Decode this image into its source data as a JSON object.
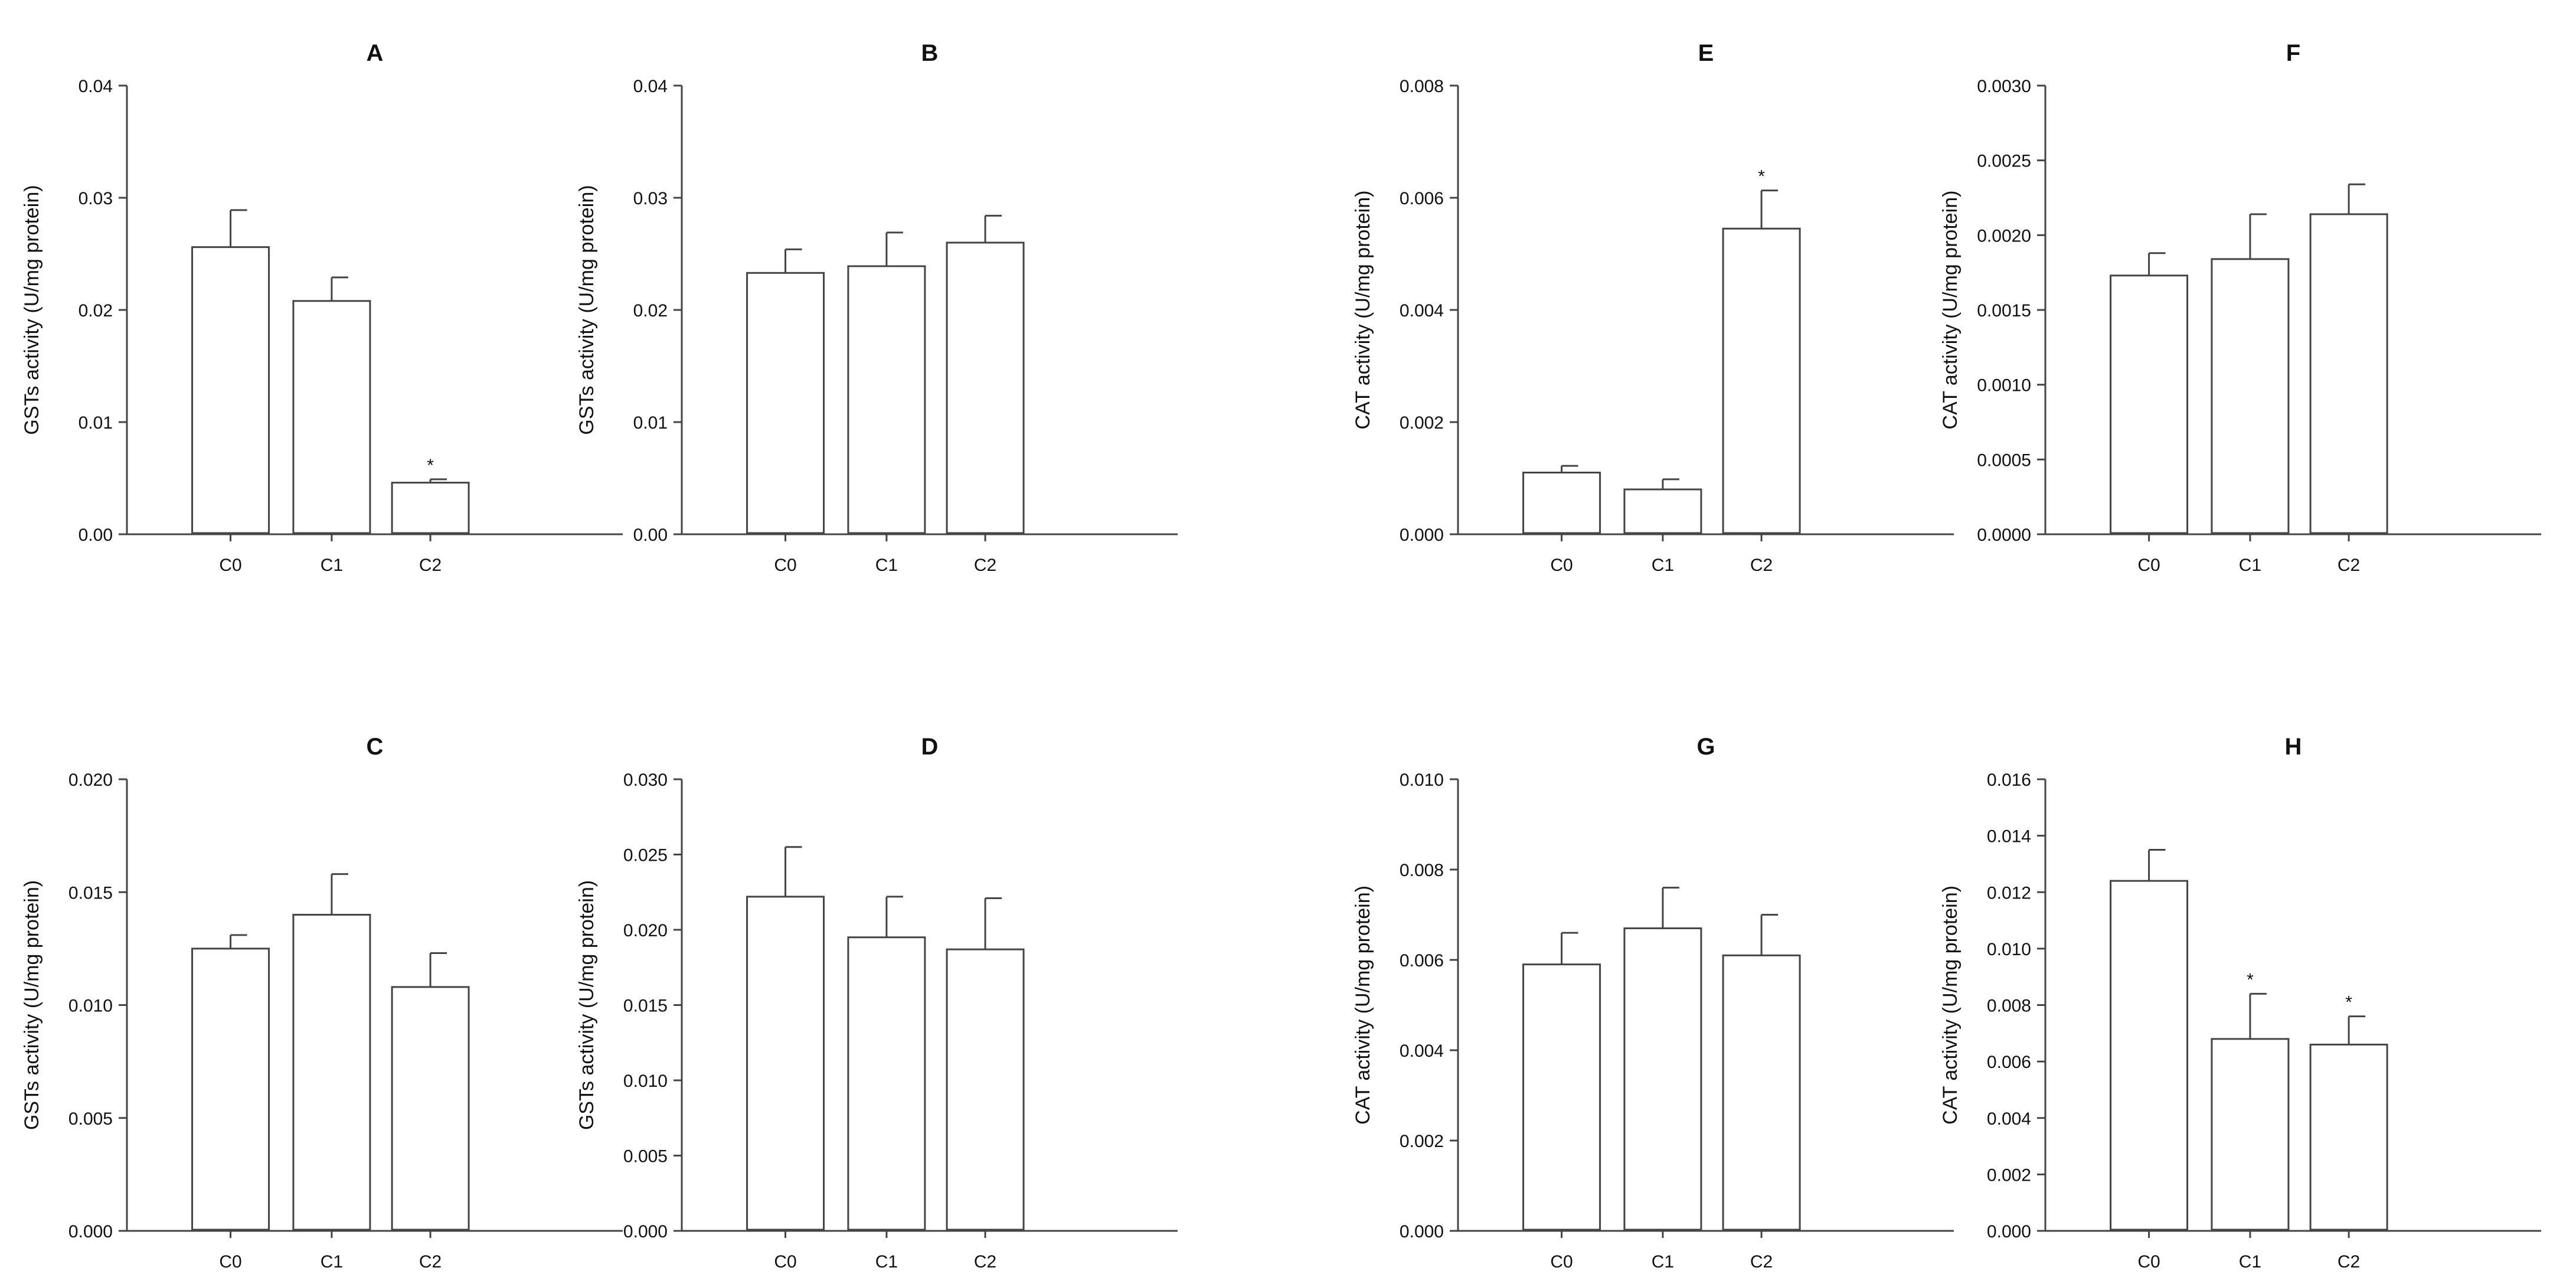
{
  "chart_data": [
    {
      "id": "A",
      "type": "bar",
      "title": "A",
      "ylabel": "GSTs activity (U/mg protein)",
      "categories": [
        "C0",
        "C1",
        "C2"
      ],
      "values": [
        0.0256,
        0.0208,
        0.0046
      ],
      "errors": [
        0.0033,
        0.0021,
        0.0003
      ],
      "significance": [
        "",
        "",
        "*"
      ],
      "ylim": [
        0,
        0.04
      ],
      "yticks": [
        "0.00",
        "0.01",
        "0.02",
        "0.03",
        "0.04"
      ]
    },
    {
      "id": "B",
      "type": "bar",
      "title": "B",
      "ylabel": "GSTs activity (U/mg protein)",
      "categories": [
        "C0",
        "C1",
        "C2"
      ],
      "values": [
        0.0233,
        0.0239,
        0.026
      ],
      "errors": [
        0.0021,
        0.003,
        0.0024
      ],
      "significance": [
        "",
        "",
        ""
      ],
      "ylim": [
        0,
        0.04
      ],
      "yticks": [
        "0.00",
        "0.01",
        "0.02",
        "0.03",
        "0.04"
      ]
    },
    {
      "id": "E",
      "type": "bar",
      "title": "E",
      "ylabel": "CAT activity (U/mg protein)",
      "categories": [
        "C0",
        "C1",
        "C2"
      ],
      "values": [
        0.0011,
        0.0008,
        0.00545
      ],
      "errors": [
        0.00012,
        0.00018,
        0.00068
      ],
      "significance": [
        "",
        "",
        "*"
      ],
      "ylim": [
        0,
        0.008
      ],
      "yticks": [
        "0.000",
        "0.002",
        "0.004",
        "0.006",
        "0.008"
      ]
    },
    {
      "id": "F",
      "type": "bar",
      "title": "F",
      "ylabel": "CAT activity (U/mg protein)",
      "categories": [
        "C0",
        "C1",
        "C2"
      ],
      "values": [
        0.00173,
        0.00184,
        0.00214
      ],
      "errors": [
        0.00015,
        0.0003,
        0.0002
      ],
      "significance": [
        "",
        "",
        ""
      ],
      "ylim": [
        0,
        0.003
      ],
      "yticks": [
        "0.0000",
        "0.0005",
        "0.0010",
        "0.0015",
        "0.0020",
        "0.0025",
        "0.0030"
      ]
    },
    {
      "id": "C",
      "type": "bar",
      "title": "C",
      "ylabel": "GSTs activity (U/mg protein)",
      "categories": [
        "C0",
        "C1",
        "C2"
      ],
      "values": [
        0.0125,
        0.014,
        0.0108
      ],
      "errors": [
        0.0006,
        0.0018,
        0.0015
      ],
      "significance": [
        "",
        "",
        ""
      ],
      "ylim": [
        0,
        0.02
      ],
      "yticks": [
        "0.000",
        "0.005",
        "0.010",
        "0.015",
        "0.020"
      ]
    },
    {
      "id": "D",
      "type": "bar",
      "title": "D",
      "ylabel": "GSTs activity (U/mg protein)",
      "categories": [
        "C0",
        "C1",
        "C2"
      ],
      "values": [
        0.0222,
        0.0195,
        0.0187
      ],
      "errors": [
        0.0033,
        0.0027,
        0.0034
      ],
      "significance": [
        "",
        "",
        ""
      ],
      "ylim": [
        0,
        0.03
      ],
      "yticks": [
        "0.000",
        "0.005",
        "0.010",
        "0.015",
        "0.020",
        "0.025",
        "0.030"
      ]
    },
    {
      "id": "G",
      "type": "bar",
      "title": "G",
      "ylabel": "CAT activity (U/mg protein)",
      "categories": [
        "C0",
        "C1",
        "C2"
      ],
      "values": [
        0.0059,
        0.0067,
        0.0061
      ],
      "errors": [
        0.0007,
        0.0009,
        0.0009
      ],
      "significance": [
        "",
        "",
        ""
      ],
      "ylim": [
        0,
        0.01
      ],
      "yticks": [
        "0.000",
        "0.002",
        "0.004",
        "0.006",
        "0.008",
        "0.010"
      ]
    },
    {
      "id": "H",
      "type": "bar",
      "title": "H",
      "ylabel": "CAT activity (U/mg protein)",
      "categories": [
        "C0",
        "C1",
        "C2"
      ],
      "values": [
        0.0124,
        0.0068,
        0.0066
      ],
      "errors": [
        0.0011,
        0.0016,
        0.001
      ],
      "significance": [
        "",
        "*",
        "*"
      ],
      "ylim": [
        0,
        0.016
      ],
      "yticks": [
        "0.000",
        "0.002",
        "0.004",
        "0.006",
        "0.008",
        "0.010",
        "0.012",
        "0.014",
        "0.016"
      ]
    }
  ]
}
